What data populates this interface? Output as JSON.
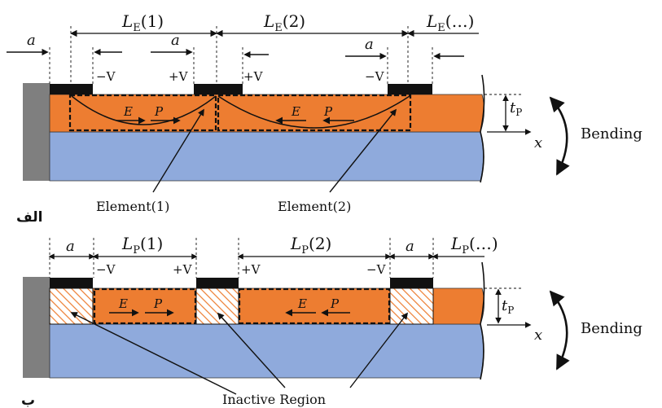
{
  "colors": {
    "piezo": "#ED7D31",
    "substrate": "#8FAADC",
    "clamp": "#7F7F7F",
    "electrode": "#111111",
    "hatch": "#ED7D31"
  },
  "top": {
    "panel_label": "الف",
    "len_e": [
      "L",
      "E",
      "(1)",
      "(2)",
      "(…)"
    ],
    "a": "a",
    "volts": [
      "−V",
      "+V",
      "+V",
      "−V"
    ],
    "field": "E",
    "pol": "P",
    "thickness": [
      "t",
      "P"
    ],
    "axis": "x",
    "bending": "Bending",
    "element1": "Element(1)",
    "element2": "Element(2)"
  },
  "bottom": {
    "panel_label": "ب",
    "len_p": [
      "L",
      "P",
      "(1)",
      "(2)",
      "(…)"
    ],
    "a": "a",
    "volts": [
      "−V",
      "+V",
      "+V",
      "−V"
    ],
    "field": "E",
    "pol": "P",
    "thickness": [
      "t",
      "P"
    ],
    "axis": "x",
    "bending": "Bending",
    "inactive": "Inactive Region"
  }
}
